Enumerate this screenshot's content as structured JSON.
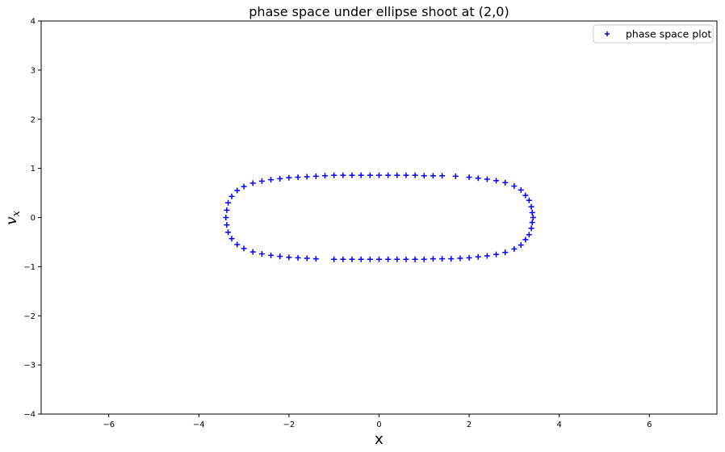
{
  "chart_data": {
    "type": "scatter",
    "title": "phase space under ellipse shoot at (2,0)",
    "xlabel": "x",
    "ylabel_main": "v",
    "ylabel_sub": "x",
    "xlim": [
      -7.5,
      7.5
    ],
    "ylim": [
      -4,
      4
    ],
    "xticks": [
      -6,
      -4,
      -2,
      0,
      2,
      4,
      6
    ],
    "yticks": [
      -4,
      -3,
      -2,
      -1,
      0,
      1,
      2,
      3,
      4
    ],
    "grid": false,
    "legend": {
      "placement": "top-right",
      "entries": [
        "phase space plot"
      ]
    },
    "marker": "+",
    "color": "#0000ff",
    "series": [
      {
        "name": "phase space plot",
        "points": [
          [
            -1.2,
            0.85
          ],
          [
            -1.0,
            0.86
          ],
          [
            -0.8,
            0.86
          ],
          [
            -0.6,
            0.86
          ],
          [
            -0.4,
            0.86
          ],
          [
            -0.2,
            0.86
          ],
          [
            0.0,
            0.86
          ],
          [
            0.2,
            0.86
          ],
          [
            0.4,
            0.86
          ],
          [
            0.6,
            0.86
          ],
          [
            0.8,
            0.86
          ],
          [
            1.0,
            0.85
          ],
          [
            1.2,
            0.85
          ],
          [
            1.4,
            0.85
          ],
          [
            1.7,
            0.84
          ],
          [
            2.0,
            0.82
          ],
          [
            2.2,
            0.8
          ],
          [
            2.4,
            0.78
          ],
          [
            2.6,
            0.75
          ],
          [
            2.8,
            0.71
          ],
          [
            3.0,
            0.64
          ],
          [
            3.15,
            0.56
          ],
          [
            3.25,
            0.45
          ],
          [
            3.33,
            0.35
          ],
          [
            3.38,
            0.22
          ],
          [
            3.4,
            0.1
          ],
          [
            3.42,
            0.0
          ],
          [
            3.4,
            -0.1
          ],
          [
            3.38,
            -0.22
          ],
          [
            3.33,
            -0.35
          ],
          [
            3.25,
            -0.45
          ],
          [
            3.15,
            -0.56
          ],
          [
            3.0,
            -0.64
          ],
          [
            2.8,
            -0.71
          ],
          [
            2.6,
            -0.75
          ],
          [
            2.4,
            -0.78
          ],
          [
            2.2,
            -0.8
          ],
          [
            2.0,
            -0.82
          ],
          [
            1.8,
            -0.83
          ],
          [
            1.6,
            -0.84
          ],
          [
            1.4,
            -0.84
          ],
          [
            1.2,
            -0.84
          ],
          [
            1.0,
            -0.85
          ],
          [
            0.8,
            -0.85
          ],
          [
            0.6,
            -0.85
          ],
          [
            0.4,
            -0.85
          ],
          [
            0.2,
            -0.85
          ],
          [
            0.0,
            -0.85
          ],
          [
            -0.2,
            -0.85
          ],
          [
            -0.4,
            -0.85
          ],
          [
            -0.6,
            -0.85
          ],
          [
            -0.8,
            -0.85
          ],
          [
            -1.0,
            -0.85
          ],
          [
            -1.4,
            -0.84
          ],
          [
            -1.6,
            -0.83
          ],
          [
            -1.8,
            -0.82
          ],
          [
            -2.0,
            -0.81
          ],
          [
            -2.2,
            -0.79
          ],
          [
            -2.4,
            -0.77
          ],
          [
            -2.6,
            -0.74
          ],
          [
            -2.8,
            -0.7
          ],
          [
            -3.0,
            -0.63
          ],
          [
            -3.15,
            -0.55
          ],
          [
            -3.27,
            -0.43
          ],
          [
            -3.35,
            -0.3
          ],
          [
            -3.38,
            -0.15
          ],
          [
            -3.4,
            0.0
          ],
          [
            -3.38,
            0.15
          ],
          [
            -3.35,
            0.3
          ],
          [
            -3.27,
            0.43
          ],
          [
            -3.15,
            0.55
          ],
          [
            -3.0,
            0.63
          ],
          [
            -2.8,
            0.7
          ],
          [
            -2.6,
            0.74
          ],
          [
            -2.4,
            0.77
          ],
          [
            -2.2,
            0.79
          ],
          [
            -2.0,
            0.81
          ],
          [
            -1.8,
            0.82
          ],
          [
            -1.6,
            0.83
          ],
          [
            -1.4,
            0.84
          ]
        ]
      }
    ]
  }
}
